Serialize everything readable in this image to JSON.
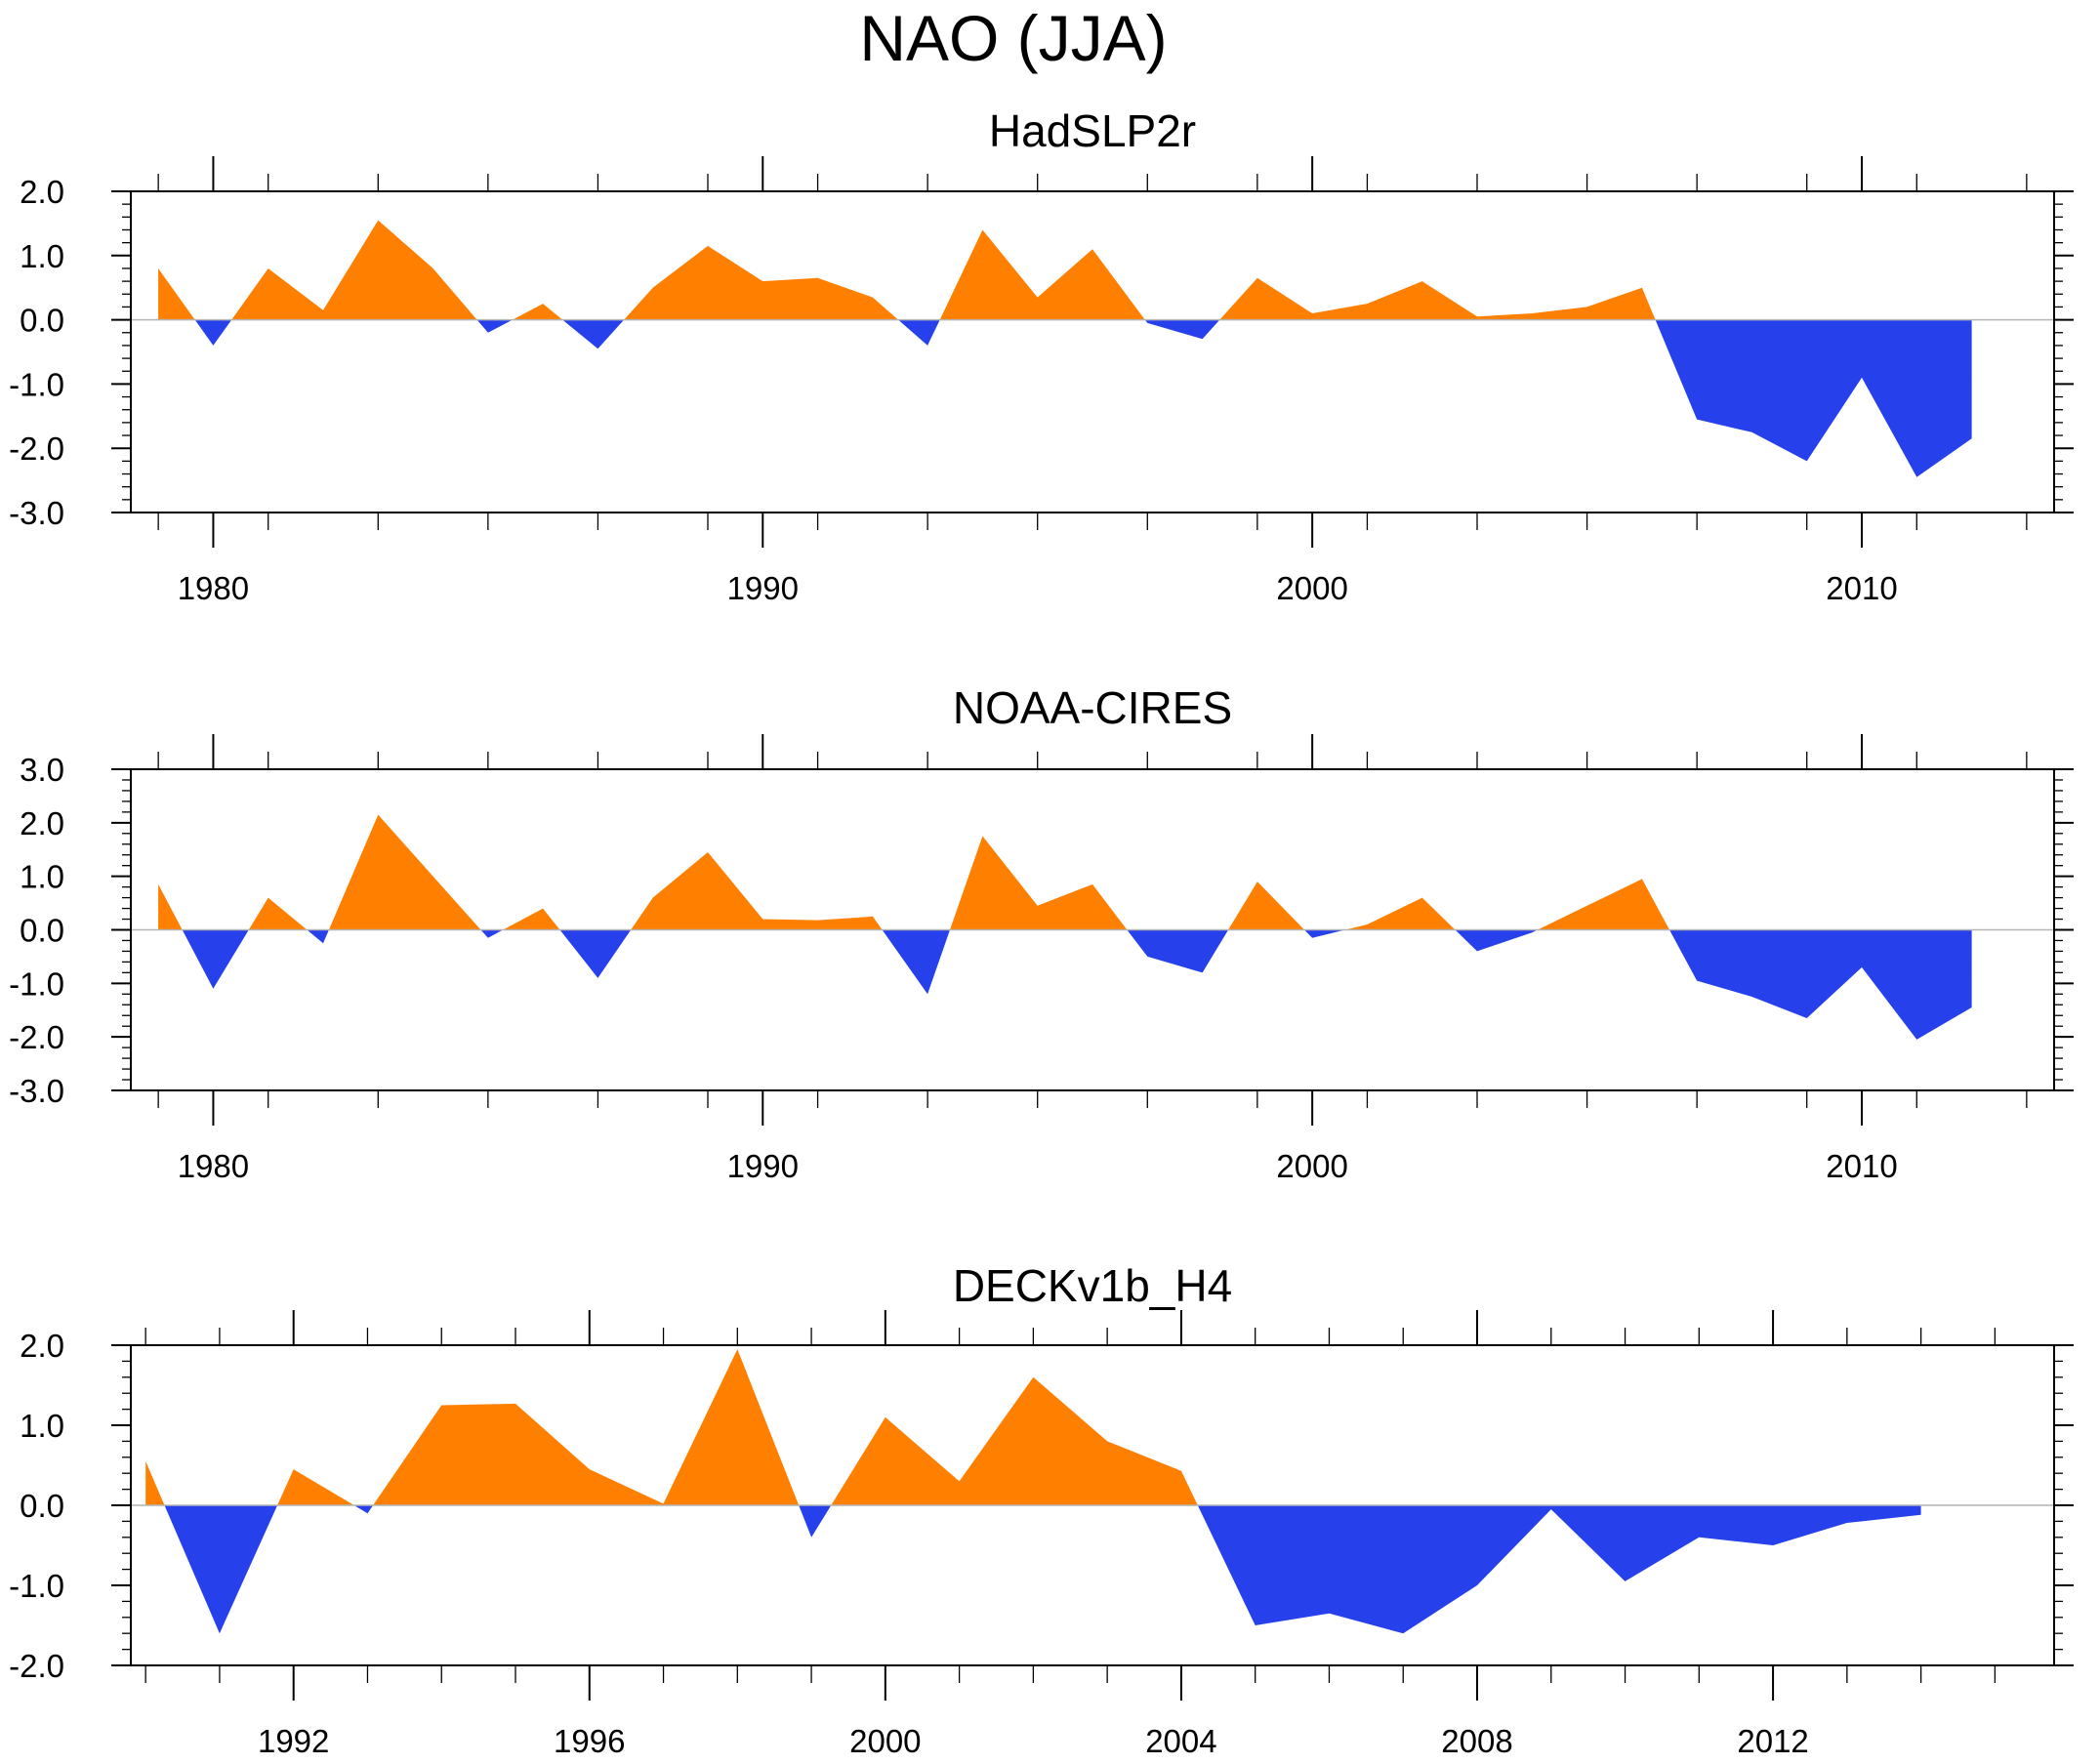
{
  "title": "NAO (JJA)",
  "colors": {
    "positive": "#ff8000",
    "negative": "#2640ec",
    "axis": "#000000",
    "zero_line": "#b4b4b4"
  },
  "chart_data": [
    {
      "type": "area",
      "title": "HadSLP2r",
      "x": [
        1979,
        1980,
        1981,
        1982,
        1983,
        1984,
        1985,
        1986,
        1987,
        1988,
        1989,
        1990,
        1991,
        1992,
        1993,
        1994,
        1995,
        1996,
        1997,
        1998,
        1999,
        2000,
        2001,
        2002,
        2003,
        2004,
        2005,
        2006,
        2007,
        2008,
        2009,
        2010,
        2011,
        2012
      ],
      "values": [
        0.8,
        -0.4,
        0.8,
        0.15,
        1.55,
        0.8,
        -0.2,
        0.25,
        -0.45,
        0.5,
        1.15,
        0.6,
        0.65,
        0.35,
        -0.4,
        1.4,
        0.35,
        1.1,
        -0.05,
        -0.3,
        0.65,
        0.1,
        0.25,
        0.6,
        0.05,
        0.1,
        0.2,
        0.5,
        -1.55,
        -1.75,
        -2.2,
        -0.9,
        -2.45,
        -1.85
      ],
      "xlim": [
        1978.5,
        2013.5
      ],
      "ylim": [
        -3.0,
        2.0
      ],
      "y_ticks": [
        "2.0",
        "1.0",
        "0.0",
        "-1.0",
        "-2.0",
        "-3.0"
      ],
      "y_tick_values": [
        2.0,
        1.0,
        0.0,
        -1.0,
        -2.0,
        -3.0
      ],
      "x_ticks": [
        "1980",
        "1990",
        "2000",
        "2010"
      ],
      "x_tick_values": [
        1980,
        1990,
        2000,
        2010
      ],
      "x_minor_step": 2,
      "y_minor_step": 0.2
    },
    {
      "type": "area",
      "title": "NOAA-CIRES",
      "x": [
        1979,
        1980,
        1981,
        1982,
        1983,
        1984,
        1985,
        1986,
        1987,
        1988,
        1989,
        1990,
        1991,
        1992,
        1993,
        1994,
        1995,
        1996,
        1997,
        1998,
        1999,
        2000,
        2001,
        2002,
        2003,
        2004,
        2005,
        2006,
        2007,
        2008,
        2009,
        2010,
        2011,
        2012
      ],
      "values": [
        0.85,
        -1.1,
        0.6,
        -0.25,
        2.15,
        1.0,
        -0.15,
        0.4,
        -0.9,
        0.6,
        1.45,
        0.2,
        0.18,
        0.25,
        -1.2,
        1.75,
        0.45,
        0.85,
        -0.5,
        -0.8,
        0.9,
        -0.15,
        0.1,
        0.6,
        -0.4,
        -0.05,
        0.45,
        0.95,
        -0.95,
        -1.25,
        -1.65,
        -0.7,
        -2.05,
        -1.45
      ],
      "xlim": [
        1978.5,
        2013.5
      ],
      "ylim": [
        -3.0,
        3.0
      ],
      "y_ticks": [
        "3.0",
        "2.0",
        "1.0",
        "0.0",
        "-1.0",
        "-2.0",
        "-3.0"
      ],
      "y_tick_values": [
        3.0,
        2.0,
        1.0,
        0.0,
        -1.0,
        -2.0,
        -3.0
      ],
      "x_ticks": [
        "1980",
        "1990",
        "2000",
        "2010"
      ],
      "x_tick_values": [
        1980,
        1990,
        2000,
        2010
      ],
      "x_minor_step": 2,
      "y_minor_step": 0.2
    },
    {
      "type": "area",
      "title": "DECKv1b_H4",
      "x": [
        1990,
        1991,
        1992,
        1993,
        1994,
        1995,
        1996,
        1997,
        1998,
        1999,
        2000,
        2001,
        2002,
        2003,
        2004,
        2005,
        2006,
        2007,
        2008,
        2009,
        2010,
        2011,
        2012,
        2013,
        2014
      ],
      "values": [
        0.55,
        -1.6,
        0.45,
        -0.1,
        1.25,
        1.27,
        0.45,
        0.02,
        1.95,
        -0.4,
        1.1,
        0.3,
        1.6,
        0.8,
        0.43,
        -1.5,
        -1.35,
        -1.6,
        -1.0,
        -0.05,
        -0.95,
        -0.4,
        -0.5,
        -0.22,
        -0.12
      ],
      "xlim": [
        1989.8,
        2015.8
      ],
      "ylim": [
        -2.0,
        2.0
      ],
      "y_ticks": [
        "2.0",
        "1.0",
        "0.0",
        "-1.0",
        "-2.0"
      ],
      "y_tick_values": [
        2.0,
        1.0,
        0.0,
        -1.0,
        -2.0
      ],
      "x_ticks": [
        "1992",
        "1996",
        "2000",
        "2004",
        "2008",
        "2012"
      ],
      "x_tick_values": [
        1992,
        1996,
        2000,
        2004,
        2008,
        2012
      ],
      "x_minor_step": 1,
      "y_minor_step": 0.2
    }
  ]
}
